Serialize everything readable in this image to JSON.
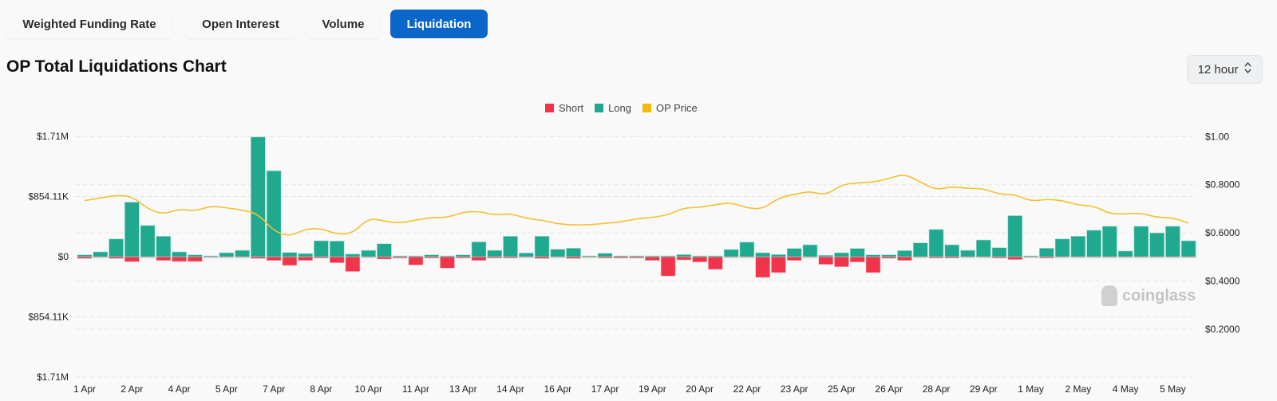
{
  "tabs": [
    {
      "label": "Weighted Funding Rate",
      "active": false
    },
    {
      "label": "Open Interest",
      "active": false
    },
    {
      "label": "Volume",
      "active": false
    },
    {
      "label": "Liquidation",
      "active": true
    }
  ],
  "header": {
    "title": "OP Total Liquidations Chart",
    "interval": "12 hour",
    "interval_icon": "chevron-up-down-icon"
  },
  "watermark": "coinglass",
  "colors": {
    "short": "#f0344a",
    "long": "#20a98e",
    "price": "#f3c034",
    "active_tab": "#0b66c9"
  },
  "chart_data": {
    "type": "bar",
    "legend": [
      {
        "label": "Short",
        "color": "#f0344a"
      },
      {
        "label": "Long",
        "color": "#20a98e"
      },
      {
        "label": "OP Price",
        "color": "#f3c034"
      }
    ],
    "legend_position": "top-center",
    "interval": "12 hour",
    "x_range": [
      "1 Apr",
      "5 May"
    ],
    "x_tick_labels": [
      "1 Apr",
      "2 Apr",
      "4 Apr",
      "5 Apr",
      "7 Apr",
      "8 Apr",
      "10 Apr",
      "11 Apr",
      "13 Apr",
      "14 Apr",
      "16 Apr",
      "17 Apr",
      "19 Apr",
      "20 Apr",
      "22 Apr",
      "23 Apr",
      "25 Apr",
      "26 Apr",
      "28 Apr",
      "29 Apr",
      "1 May",
      "2 May",
      "4 May",
      "5 May"
    ],
    "y_left_ticks": [
      "$1.71M",
      "$854.11K",
      "$0",
      "$854.11K",
      "$1.71M"
    ],
    "y_left_range": [
      -1710000,
      1710000
    ],
    "y_right_ticks": [
      "$1.00",
      "$0.8000",
      "$0.6000",
      "$0.4000",
      "$0.2000"
    ],
    "y_right_range": [
      0,
      1.0
    ],
    "grid": true,
    "series": [
      {
        "name": "Long",
        "axis": "left",
        "direction": "up",
        "values": [
          26000,
          68000,
          252000,
          775000,
          444000,
          290000,
          68000,
          26000,
          8000,
          56000,
          90000,
          1700000,
          1220000,
          60000,
          45000,
          226000,
          222000,
          38000,
          90000,
          184000,
          0,
          0,
          26000,
          0,
          26000,
          210000,
          90000,
          290000,
          53000,
          290000,
          105000,
          120000,
          8000,
          49000,
          0,
          0,
          0,
          0,
          30000,
          8000,
          0,
          102000,
          207000,
          56000,
          30000,
          117000,
          169000,
          19000,
          56000,
          117000,
          26000,
          26000,
          86000,
          196000,
          387000,
          169000,
          90000,
          237000,
          128000,
          583000,
          11000,
          120000,
          252000,
          290000,
          376000,
          432000,
          80000,
          432000,
          338000,
          432000,
          226000
        ]
      },
      {
        "name": "Short",
        "axis": "left",
        "direction": "down",
        "values": [
          26000,
          11000,
          26000,
          71000,
          11000,
          53000,
          68000,
          68000,
          0,
          11000,
          0,
          26000,
          53000,
          124000,
          53000,
          19000,
          86000,
          210000,
          11000,
          34000,
          19000,
          117000,
          19000,
          162000,
          19000,
          53000,
          19000,
          19000,
          0,
          26000,
          11000,
          26000,
          11000,
          19000,
          19000,
          19000,
          53000,
          274000,
          45000,
          75000,
          180000,
          11000,
          11000,
          294000,
          226000,
          53000,
          11000,
          109000,
          143000,
          75000,
          226000,
          23000,
          53000,
          0,
          19000,
          19000,
          8000,
          0,
          19000,
          41000,
          0,
          19000,
          8000,
          8000,
          8000,
          8000,
          0,
          8000,
          8000,
          0,
          0
        ]
      },
      {
        "name": "OP Price",
        "axis": "right",
        "type": "line",
        "values": [
          0.734,
          0.745,
          0.756,
          0.752,
          0.7,
          0.676,
          0.7,
          0.69,
          0.712,
          0.704,
          0.695,
          0.679,
          0.607,
          0.585,
          0.616,
          0.618,
          0.594,
          0.598,
          0.662,
          0.649,
          0.64,
          0.653,
          0.664,
          0.664,
          0.686,
          0.69,
          0.673,
          0.681,
          0.66,
          0.653,
          0.637,
          0.633,
          0.633,
          0.64,
          0.645,
          0.659,
          0.664,
          0.675,
          0.704,
          0.706,
          0.717,
          0.726,
          0.703,
          0.699,
          0.745,
          0.76,
          0.773,
          0.756,
          0.8,
          0.808,
          0.81,
          0.826,
          0.845,
          0.811,
          0.778,
          0.793,
          0.784,
          0.784,
          0.76,
          0.76,
          0.731,
          0.74,
          0.734,
          0.715,
          0.712,
          0.679,
          0.679,
          0.682,
          0.664,
          0.663,
          0.64
        ]
      }
    ]
  }
}
